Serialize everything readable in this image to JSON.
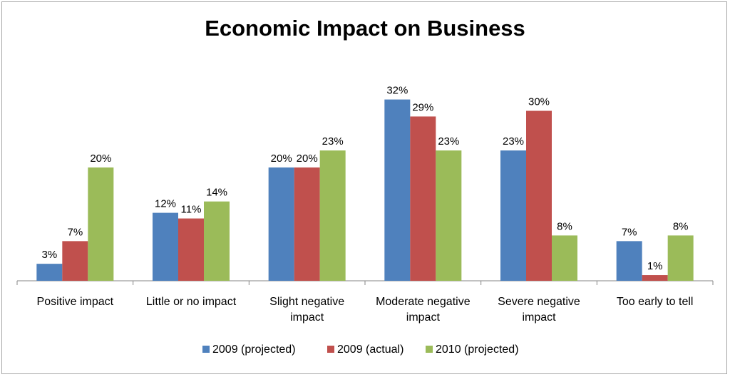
{
  "chart_data": {
    "type": "bar",
    "title": "Economic Impact on Business",
    "xlabel": "",
    "ylabel": "",
    "ylim": [
      0,
      34
    ],
    "grid": false,
    "legend_position": "bottom",
    "categories": [
      "Positive impact",
      "Little or no impact",
      "Slight negative impact",
      "Moderate negative impact",
      "Severe negative impact",
      "Too early to tell"
    ],
    "series": [
      {
        "name": "2009 (projected)",
        "color": "#4f81bd",
        "values": [
          3,
          12,
          20,
          32,
          23,
          7
        ]
      },
      {
        "name": "2009 (actual)",
        "color": "#c0504d",
        "values": [
          7,
          11,
          20,
          29,
          30,
          1
        ]
      },
      {
        "name": "2010 (projected)",
        "color": "#9bbb59",
        "values": [
          20,
          14,
          23,
          23,
          8,
          8
        ]
      }
    ],
    "value_suffix": "%"
  }
}
